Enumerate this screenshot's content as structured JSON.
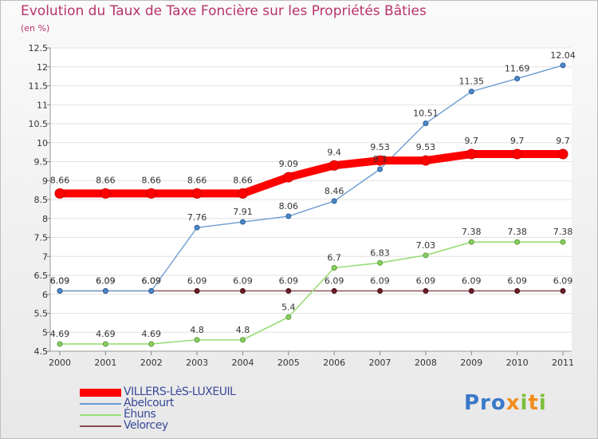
{
  "title": "Evolution du Taux de Taxe Foncière sur les Propriétés Bâties",
  "subtitle": "(en %)",
  "logo": {
    "text": "Proxiti",
    "icon": "proxiti-logo"
  },
  "chart_data": {
    "type": "line",
    "title": "Evolution du Taux de Taxe Foncière sur les Propriétés Bâties",
    "ylabel": "(en %)",
    "xlabel": "",
    "categories": [
      "2000",
      "2001",
      "2002",
      "2003",
      "2004",
      "2005",
      "2006",
      "2007",
      "2008",
      "2009",
      "2010",
      "2011"
    ],
    "ylim": [
      4.5,
      12.5
    ],
    "yticks": [
      "4.5",
      "5",
      "5.5",
      "6",
      "6.5",
      "7",
      "7.5",
      "8",
      "8.5",
      "9",
      "9.5",
      "10",
      "10.5",
      "11",
      "11.5",
      "12",
      "12.5"
    ],
    "grid": "horizontal",
    "legend_position": "bottom-left",
    "series": [
      {
        "name": "VILLERS-LèS-LUXEUIL",
        "color": "#ff0000",
        "values": [
          8.66,
          8.66,
          8.66,
          8.66,
          8.66,
          9.09,
          9.4,
          9.53,
          9.53,
          9.7,
          9.7,
          9.7
        ],
        "labels": [
          "8.66",
          "8.66",
          "8.66",
          "8.66",
          "8.66",
          "9.09",
          "9.4",
          "9.53",
          "9.53",
          "9.7",
          "9.7",
          "9.7"
        ]
      },
      {
        "name": "Abelcourt",
        "color": "#6b9bd0",
        "values": [
          6.09,
          6.09,
          6.09,
          7.76,
          7.91,
          8.06,
          8.46,
          9.3,
          10.51,
          11.35,
          11.69,
          12.04
        ],
        "labels": [
          "6.09",
          "6.09",
          "6.09",
          "7.76",
          "7.91",
          "8.06",
          "8.46",
          "9.3",
          "10.51",
          "11.35",
          "11.69",
          "12.04"
        ]
      },
      {
        "name": "Éhuns",
        "color": "#99dd77",
        "values": [
          4.69,
          4.69,
          4.69,
          4.8,
          4.8,
          5.4,
          6.7,
          6.83,
          7.03,
          7.38,
          7.38,
          7.38
        ],
        "labels": [
          "4.69",
          "4.69",
          "4.69",
          "4.8",
          "4.8",
          "5.4",
          "6.7",
          "6.83",
          "7.03",
          "7.38",
          "7.38",
          "7.38"
        ]
      },
      {
        "name": "Velorcey",
        "color": "#8b4a52",
        "values": [
          6.09,
          6.09,
          6.09,
          6.09,
          6.09,
          6.09,
          6.09,
          6.09,
          6.09,
          6.09,
          6.09,
          6.09
        ],
        "labels": [
          "6.09",
          "6.09",
          "6.09",
          "6.09",
          "6.09",
          "6.09",
          "6.09",
          "6.09",
          "6.09",
          "6.09",
          "6.09",
          "6.09"
        ]
      }
    ]
  }
}
